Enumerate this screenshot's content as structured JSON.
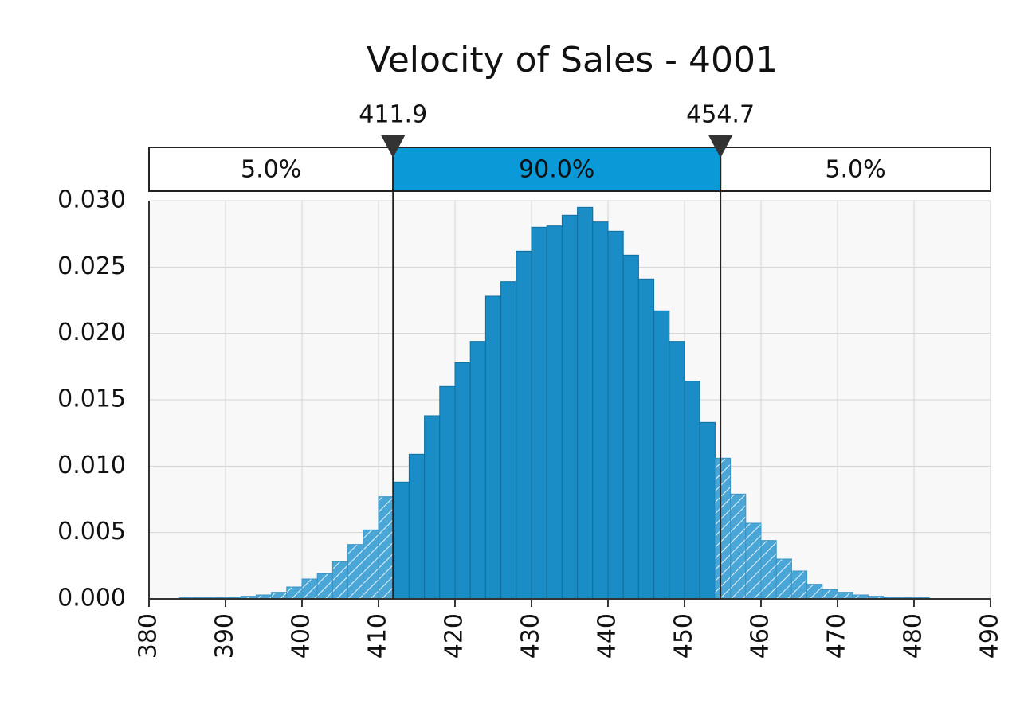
{
  "chart_data": {
    "type": "histogram",
    "title": "Velocity of Sales - 4001",
    "bins": [
      384,
      386,
      388,
      390,
      392,
      394,
      396,
      398,
      400,
      402,
      404,
      406,
      408,
      410,
      412,
      414,
      416,
      418,
      420,
      422,
      424,
      426,
      428,
      430,
      432,
      434,
      436,
      438,
      440,
      442,
      444,
      446,
      448,
      450,
      452,
      454,
      456,
      458,
      460,
      462,
      464,
      466,
      468,
      470,
      472,
      474,
      476,
      478,
      480,
      482
    ],
    "values": [
      0.0001,
      0.0001,
      0.0001,
      0.0001,
      0.0002,
      0.0003,
      0.0005,
      0.0009,
      0.0015,
      0.0019,
      0.0028,
      0.0041,
      0.0052,
      0.0077,
      0.0088,
      0.0109,
      0.0138,
      0.016,
      0.0178,
      0.0194,
      0.0228,
      0.0239,
      0.0262,
      0.028,
      0.0281,
      0.0289,
      0.0295,
      0.0284,
      0.0277,
      0.0259,
      0.0241,
      0.0217,
      0.0194,
      0.0164,
      0.0133,
      0.0106,
      0.0079,
      0.0057,
      0.0044,
      0.003,
      0.0021,
      0.0011,
      0.0007,
      0.0005,
      0.0003,
      0.0002,
      0.0001,
      0.0001,
      0.0001
    ],
    "color": "#1a8cc6",
    "markers": [
      411.9,
      454.7
    ],
    "regions": [
      {
        "value": 5.0,
        "label": "5.0%"
      },
      {
        "value": 90.0,
        "label": "90.0%"
      },
      {
        "value": 5.0,
        "label": "5.0%"
      }
    ],
    "region_color": "#0a9ad8",
    "xlim": [
      380,
      490
    ],
    "xticks": [
      380,
      390,
      400,
      410,
      420,
      430,
      440,
      450,
      460,
      470,
      480,
      490
    ],
    "ylim": [
      0,
      0.03
    ],
    "yticks": [
      {
        "value": 0,
        "label": "0.000"
      },
      0.005,
      {
        "value": 0.01,
        "label": "0.010"
      },
      0.015,
      {
        "value": 0.02,
        "label": "0.020"
      },
      0.025,
      {
        "value": 0.03,
        "label": "0.030"
      }
    ],
    "grid": true
  }
}
